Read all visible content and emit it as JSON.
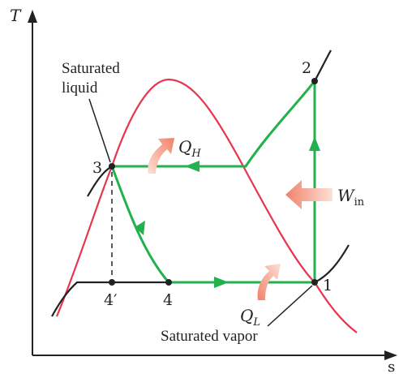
{
  "axes": {
    "y_label": "T",
    "x_label": "s"
  },
  "annotations": {
    "saturated_liquid_line1": "Saturated",
    "saturated_liquid_line2": "liquid",
    "saturated_vapor": "Saturated vapor"
  },
  "states": {
    "s1": "1",
    "s2": "2",
    "s3": "3",
    "s4": "4",
    "s4p": "4′"
  },
  "heat_work": {
    "qh_main": "Q",
    "qh_sub": "H",
    "ql_main": "Q",
    "ql_sub": "L",
    "win_main": "W",
    "win_sub": "in"
  },
  "colors": {
    "dome": "#e8354f",
    "cycle": "#22b14c",
    "isobar": "#222222",
    "arrow": "#f7a08c",
    "axis": "#222222"
  }
}
